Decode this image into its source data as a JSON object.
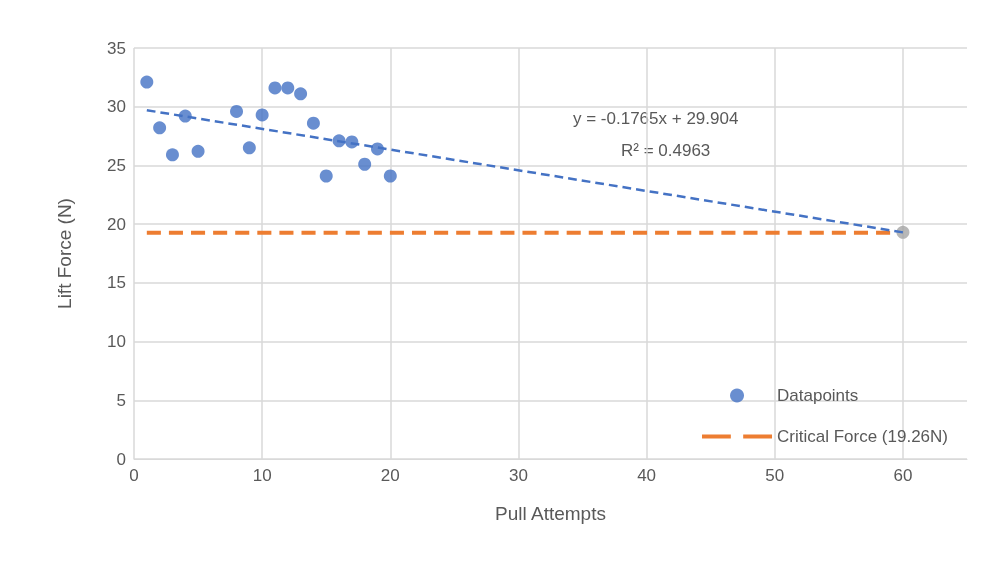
{
  "chart_data": {
    "type": "scatter",
    "xlabel": "Pull Attempts",
    "ylabel": "Lift Force (N)",
    "xlim": [
      0,
      65
    ],
    "xticks": [
      0,
      10,
      20,
      30,
      40,
      50,
      60
    ],
    "ylim": [
      0,
      35
    ],
    "yticks": [
      0,
      5,
      10,
      15,
      20,
      25,
      30,
      35
    ],
    "grid": true,
    "legend": "bottom right",
    "marker": "circle",
    "series": [
      {
        "name": "Datapoints",
        "color": "#4472c4",
        "x": [
          1,
          2,
          3,
          4,
          5,
          8,
          9,
          10,
          11,
          12,
          13,
          14,
          15,
          16,
          17,
          18,
          19,
          20
        ],
        "values": [
          32.1,
          28.2,
          25.9,
          29.2,
          26.2,
          29.6,
          26.5,
          29.3,
          31.6,
          31.6,
          31.1,
          28.6,
          24.1,
          27.1,
          27.0,
          25.1,
          26.4,
          24.1
        ]
      },
      {
        "type": "line",
        "color": "#4472c4",
        "line_style": "dashed",
        "marker": "none",
        "x": [
          1,
          60
        ],
        "values": [
          29.7,
          19.3
        ]
      },
      {
        "name": "Critical Force (19.26N)",
        "type": "line",
        "color": "#ed7d31",
        "line_style": "dashed",
        "marker": "none",
        "x": [
          59,
          1
        ],
        "values": [
          19.26,
          19.26
        ]
      },
      {
        "color": "#a5a5a5",
        "x": [
          60
        ],
        "values": [
          19.3
        ]
      }
    ],
    "annotations": [
      "y = -0.1765x + 29.904",
      "R² = 0.4963"
    ]
  }
}
